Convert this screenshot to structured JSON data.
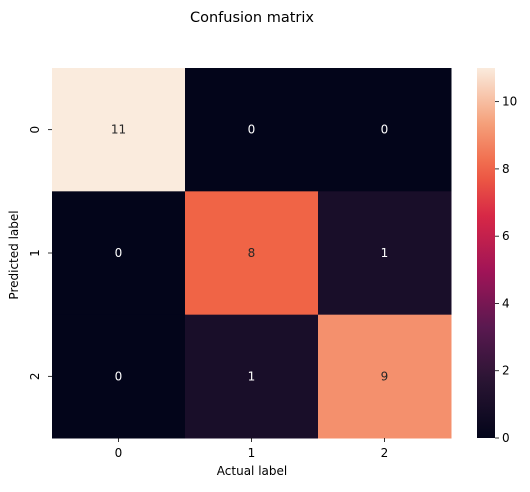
{
  "chart_data": {
    "type": "heatmap",
    "title": "Confusion matrix",
    "xlabel": "Actual label",
    "ylabel": "Predicted label",
    "x_categories": [
      "0",
      "1",
      "2"
    ],
    "y_categories": [
      "0",
      "1",
      "2"
    ],
    "values": [
      [
        11,
        0,
        0
      ],
      [
        0,
        8,
        1
      ],
      [
        0,
        1,
        9
      ]
    ],
    "colorbar": {
      "range": [
        0,
        11
      ],
      "ticks": [
        "0",
        "2",
        "4",
        "6",
        "8",
        "10"
      ]
    },
    "colormap": "rocket",
    "annotations": true,
    "grid": false
  }
}
